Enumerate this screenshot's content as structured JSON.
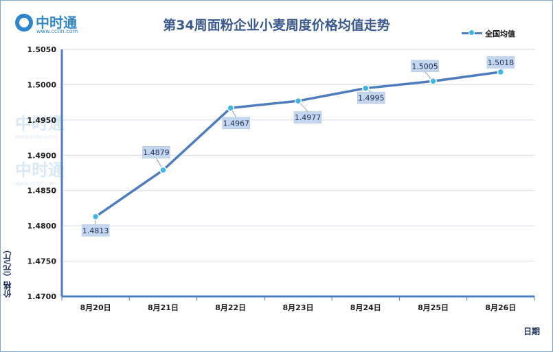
{
  "logo": {
    "text": "中时通",
    "url": "www.cctin.com"
  },
  "chart_data": {
    "type": "line",
    "title": "第34周面粉企业小麦周度价格均值走势",
    "xlabel": "日期",
    "ylabel": "价格（元/斤）",
    "categories": [
      "8月20日",
      "8月21日",
      "8月22日",
      "8月23日",
      "8月24日",
      "8月25日",
      "8月26日"
    ],
    "series": [
      {
        "name": "全国均值",
        "values": [
          1.4813,
          1.4879,
          1.4967,
          1.4977,
          1.4995,
          1.5005,
          1.5018
        ]
      }
    ],
    "data_labels": [
      "1.4813",
      "1.4879",
      "1.4967",
      "1.4977",
      "1.4995",
      "1.5005",
      "1.5018"
    ],
    "ylim": [
      1.47,
      1.505
    ],
    "yticks": [
      "1.4700",
      "1.4750",
      "1.4800",
      "1.4850",
      "1.4900",
      "1.4950",
      "1.5000",
      "1.5050"
    ],
    "grid": true,
    "legend_position": "top-right",
    "colors": {
      "line": "#4d7cbf",
      "marker": "#3fb6e8",
      "label_bg": "#c5d7ee",
      "axis": "#4d7cbf"
    }
  }
}
